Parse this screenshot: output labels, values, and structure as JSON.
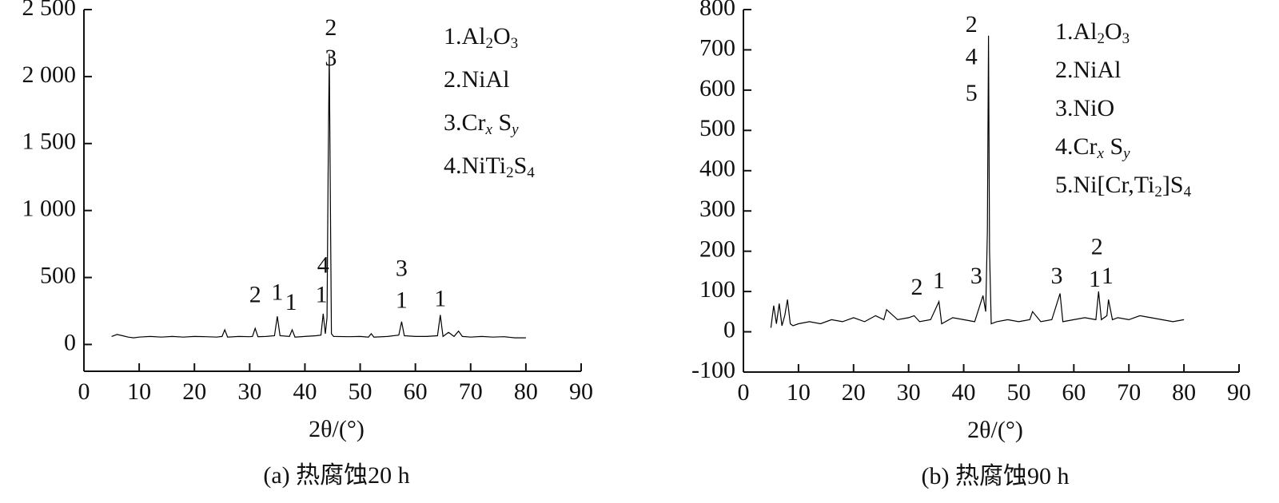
{
  "chart_data": [
    {
      "type": "line",
      "color": "#000000",
      "x": [
        5,
        6,
        7,
        8,
        9,
        10,
        12,
        14,
        16,
        18,
        20,
        22,
        24,
        25,
        25.5,
        26,
        28,
        30,
        30.5,
        31,
        31.5,
        33,
        34.5,
        35,
        35.5,
        37.2,
        37.7,
        38.2,
        40,
        42,
        42.9,
        43.3,
        43.7,
        44,
        44.2,
        44.4,
        44.6,
        44.8,
        45.2,
        48,
        50,
        51.5,
        52,
        52.5,
        55,
        57,
        57.5,
        58,
        60,
        62,
        64,
        64.5,
        65,
        66,
        67,
        67.8,
        68.5,
        70,
        72,
        74,
        76,
        78,
        80
      ],
      "values": [
        60,
        75,
        65,
        55,
        50,
        55,
        60,
        55,
        60,
        55,
        60,
        58,
        55,
        60,
        110,
        55,
        60,
        58,
        60,
        120,
        58,
        60,
        65,
        210,
        65,
        60,
        110,
        55,
        60,
        65,
        70,
        230,
        80,
        200,
        1300,
        2170,
        1150,
        80,
        60,
        58,
        60,
        55,
        80,
        55,
        60,
        70,
        170,
        65,
        60,
        60,
        65,
        220,
        60,
        90,
        60,
        100,
        60,
        55,
        60,
        55,
        58,
        50,
        50
      ],
      "xlim": [
        0,
        90
      ],
      "xticks": [
        0,
        10,
        20,
        30,
        40,
        50,
        60,
        70,
        80,
        90
      ],
      "ylim": [
        -200,
        2500
      ],
      "yticks": [
        0,
        500,
        {
          "value": 1000,
          "label": "1 000"
        },
        {
          "value": 1500,
          "label": "1 500"
        },
        {
          "value": 2000,
          "label": "2 000"
        },
        {
          "value": 2500,
          "label": "2 500"
        }
      ],
      "x_label": "2θ/(°)",
      "caption": "(a) 热腐蚀20 h",
      "annotations": [
        {
          "text": "2",
          "x": 31,
          "y": 357
        },
        {
          "text": "1",
          "x": 35,
          "y": 375
        },
        {
          "text": "1",
          "x": 37.5,
          "y": 300
        },
        {
          "text": "4",
          "x": 43.3,
          "y": 577
        },
        {
          "text": "1",
          "x": 43,
          "y": 357
        },
        {
          "text": "2",
          "x": 44.7,
          "y": 2350
        },
        {
          "text": "3",
          "x": 44.7,
          "y": 2125
        },
        {
          "text": "3",
          "x": 57.5,
          "y": 553
        },
        {
          "text": "1",
          "x": 57.5,
          "y": 315
        },
        {
          "text": "1",
          "x": 64.5,
          "y": 327
        }
      ],
      "key": [
        [
          "1.Al",
          "2",
          "O",
          "3"
        ],
        [
          "2.NiAl"
        ],
        [
          "3.Cr",
          "x",
          " S",
          "y"
        ],
        [
          "4.NiTi",
          "2",
          "S",
          "4"
        ]
      ]
    },
    {
      "type": "line",
      "color": "#000000",
      "x": [
        5,
        5.5,
        6,
        6.5,
        7,
        7.5,
        8,
        8.5,
        9,
        10,
        12,
        14,
        16,
        18,
        20,
        22,
        24,
        25.5,
        26,
        28,
        30,
        31,
        32,
        34,
        35.5,
        36,
        38,
        40,
        42,
        43.5,
        44,
        44.3,
        44.5,
        44.7,
        45,
        46,
        48,
        50,
        52,
        52.5,
        54,
        56,
        57.5,
        58,
        60,
        62,
        64,
        64.5,
        65,
        66,
        66.3,
        67,
        68,
        70,
        72,
        74,
        76,
        78,
        80
      ],
      "values": [
        10,
        65,
        20,
        70,
        15,
        40,
        80,
        20,
        15,
        20,
        25,
        20,
        30,
        25,
        35,
        25,
        40,
        30,
        55,
        30,
        35,
        40,
        25,
        30,
        75,
        20,
        35,
        30,
        25,
        90,
        50,
        250,
        735,
        200,
        20,
        25,
        30,
        25,
        30,
        50,
        25,
        30,
        95,
        25,
        30,
        35,
        30,
        100,
        30,
        40,
        80,
        30,
        35,
        30,
        40,
        35,
        30,
        25,
        30
      ],
      "xlim": [
        0,
        90
      ],
      "xticks": [
        0,
        10,
        20,
        30,
        40,
        50,
        60,
        70,
        80,
        90
      ],
      "ylim": [
        -100,
        800
      ],
      "yticks": [
        -100,
        0,
        100,
        200,
        300,
        400,
        500,
        600,
        700,
        800
      ],
      "x_label": "2θ/(°)",
      "caption": "(b) 热腐蚀90 h",
      "annotations": [
        {
          "text": "2",
          "x": 31.5,
          "y": 106
        },
        {
          "text": "1",
          "x": 35.5,
          "y": 122
        },
        {
          "text": "3",
          "x": 42.3,
          "y": 134
        },
        {
          "text": "2",
          "x": 41.4,
          "y": 758
        },
        {
          "text": "4",
          "x": 41.4,
          "y": 678
        },
        {
          "text": "5",
          "x": 41.4,
          "y": 588
        },
        {
          "text": "3",
          "x": 56.9,
          "y": 134
        },
        {
          "text": "2",
          "x": 64.2,
          "y": 206
        },
        {
          "text": "1",
          "x": 63.8,
          "y": 126
        },
        {
          "text": "1",
          "x": 66.1,
          "y": 134
        }
      ],
      "key": [
        [
          "1.Al",
          "2",
          "O",
          "3"
        ],
        [
          "2.NiAl"
        ],
        [
          "3.NiO"
        ],
        [
          "4.Cr",
          "x",
          " S",
          "y"
        ],
        [
          "5.Ni[Cr,Ti",
          "2",
          "]S",
          "4"
        ]
      ]
    }
  ]
}
